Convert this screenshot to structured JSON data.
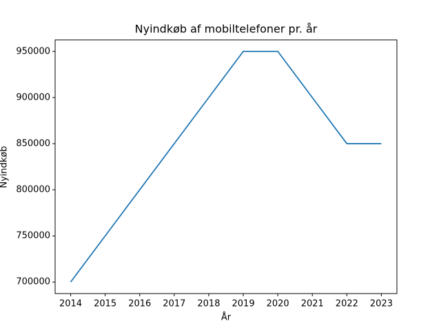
{
  "chart_data": {
    "type": "line",
    "title": "Nyindkøb af mobiltelefoner pr. år",
    "x_label": "År",
    "y_label": "Nyindkøb",
    "x": [
      2014,
      2015,
      2016,
      2017,
      2018,
      2019,
      2020,
      2021,
      2022,
      2023
    ],
    "series": [
      {
        "name": "Nyindkøb",
        "color": "#1f77b4",
        "values": [
          700000,
          750000,
          800000,
          850000,
          900000,
          950000,
          950000,
          900000,
          850000,
          850000
        ]
      }
    ],
    "xlim": [
      2013.55,
      2023.45
    ],
    "xticks": [
      2014,
      2015,
      2016,
      2017,
      2018,
      2019,
      2020,
      2021,
      2022,
      2023
    ],
    "ylim": [
      687500,
      962500
    ],
    "yticks": [
      700000,
      750000,
      800000,
      850000,
      900000,
      950000
    ]
  }
}
